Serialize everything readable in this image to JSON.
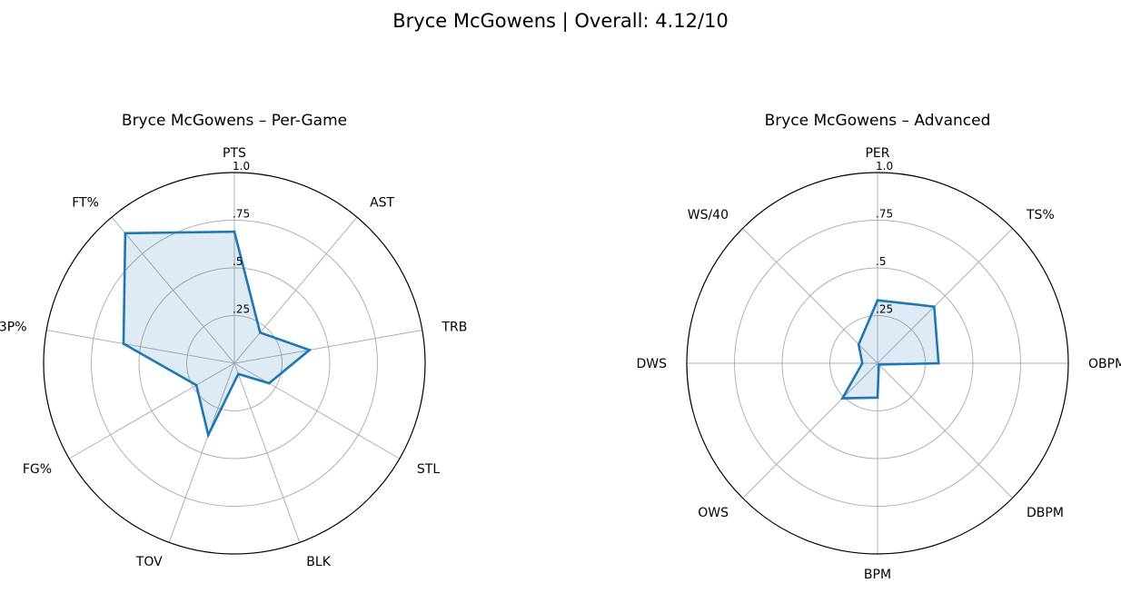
{
  "figure_title": "Bryce McGowens | Overall: 4.12/10",
  "colors": {
    "line": "#1f77b4",
    "fill": "#1f77b4",
    "fill_opacity": 0.15,
    "grid": "#b0b0b0"
  },
  "chart_data": [
    {
      "type": "radar",
      "title": "Bryce McGowens – Per-Game",
      "categories": [
        "PTS",
        "AST",
        "TRB",
        "STL",
        "BLK",
        "TOV",
        "FG%",
        "3P%",
        "FT%"
      ],
      "values": [
        0.69,
        0.21,
        0.4,
        0.21,
        0.06,
        0.4,
        0.23,
        0.59,
        0.89
      ],
      "rlim": [
        0,
        1.0
      ],
      "rticks": [
        0.25,
        0.5,
        0.75,
        1.0
      ],
      "rtick_labels": [
        ".25",
        ".5",
        ".75",
        "1.0"
      ],
      "grid": true
    },
    {
      "type": "radar",
      "title": "Bryce McGowens – Advanced",
      "categories": [
        "PER",
        "TS%",
        "OBPM",
        "DBPM",
        "BPM",
        "OWS",
        "DWS",
        "WS/40"
      ],
      "values": [
        0.33,
        0.42,
        0.32,
        0.01,
        0.18,
        0.26,
        0.08,
        0.14
      ],
      "rlim": [
        0,
        1.0
      ],
      "rticks": [
        0.25,
        0.5,
        0.75,
        1.0
      ],
      "rtick_labels": [
        ".25",
        ".5",
        ".75",
        "1.0"
      ],
      "grid": true
    }
  ]
}
